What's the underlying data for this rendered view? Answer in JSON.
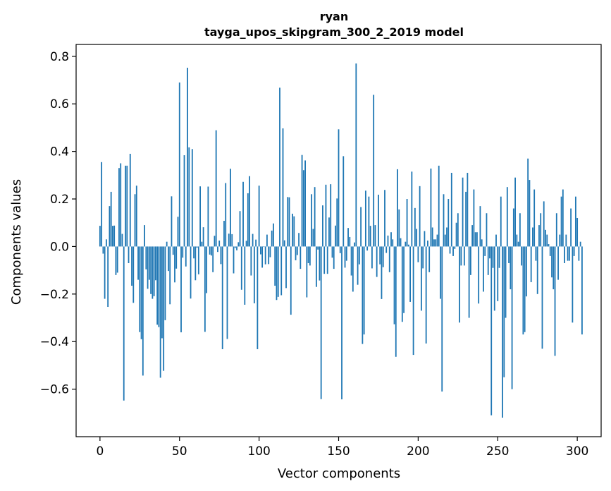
{
  "chart_data": {
    "type": "bar",
    "title": "ryan",
    "subtitle": "tayga_upos_skipgram_300_2_2019 model",
    "xlabel": "Vector components",
    "ylabel": "Components values",
    "xlim": [
      -15,
      315
    ],
    "ylim": [
      -0.8,
      0.85
    ],
    "xticks": [
      0,
      50,
      100,
      150,
      200,
      250,
      300
    ],
    "yticks": [
      -0.6,
      -0.4,
      -0.2,
      0.0,
      0.2,
      0.4,
      0.6,
      0.8
    ],
    "xtick_labels": [
      "0",
      "50",
      "100",
      "150",
      "200",
      "250",
      "300"
    ],
    "ytick_labels": [
      "−0.6",
      "−0.4",
      "−0.2",
      "0.0",
      "0.2",
      "0.4",
      "0.6",
      "0.8"
    ],
    "grid": false,
    "bar_color": "#1f77b4",
    "values": [
      0.087,
      0.355,
      -0.03,
      -0.22,
      0.03,
      -0.254,
      0.17,
      0.23,
      0.087,
      0.088,
      -0.12,
      -0.11,
      0.33,
      0.35,
      0.053,
      -0.648,
      0.34,
      0.34,
      -0.07,
      0.39,
      -0.165,
      -0.237,
      0.22,
      0.256,
      -0.14,
      -0.36,
      -0.39,
      -0.543,
      0.09,
      -0.096,
      -0.178,
      -0.14,
      -0.2,
      -0.22,
      -0.209,
      -0.142,
      -0.329,
      -0.339,
      -0.552,
      -0.386,
      -0.523,
      -0.31,
      0.02,
      -0.103,
      -0.243,
      0.211,
      -0.035,
      -0.151,
      -0.093,
      0.125,
      0.69,
      -0.361,
      -0.047,
      0.384,
      -0.084,
      0.752,
      0.417,
      -0.219,
      0.41,
      -0.05,
      -0.142,
      -0.005,
      -0.117,
      0.253,
      0.02,
      0.081,
      -0.359,
      -0.196,
      0.252,
      -0.034,
      -0.038,
      -0.108,
      0.045,
      0.489,
      -0.023,
      0.025,
      -0.074,
      -0.432,
      0.108,
      0.267,
      -0.389,
      0.054,
      0.327,
      0.052,
      -0.113,
      -0.006,
      -0.016,
      0.018,
      0.149,
      -0.182,
      0.272,
      -0.245,
      0.024,
      0.224,
      0.296,
      -0.122,
      0.053,
      -0.239,
      0.029,
      -0.432,
      0.256,
      -0.033,
      -0.089,
      -0.002,
      -0.075,
      0.05,
      -0.074,
      -0.045,
      0.067,
      0.097,
      -0.165,
      -0.225,
      -0.212,
      0.668,
      -0.205,
      0.497,
      0.026,
      -0.175,
      0.208,
      0.207,
      -0.287,
      0.138,
      0.127,
      -0.058,
      -0.036,
      0.057,
      -0.094,
      0.385,
      0.321,
      0.362,
      -0.214,
      -0.07,
      -0.08,
      0.22,
      0.074,
      0.25,
      -0.17,
      -0.013,
      -0.143,
      -0.642,
      0.173,
      -0.115,
      0.26,
      -0.115,
      0.122,
      0.262,
      -0.047,
      -0.094,
      0.088,
      0.202,
      0.493,
      -0.028,
      -0.643,
      0.38,
      -0.089,
      -0.06,
      0.078,
      0.04,
      -0.122,
      -0.19,
      0.017,
      0.77,
      -0.161,
      -0.075,
      0.166,
      -0.41,
      -0.37,
      0.235,
      -0.017,
      0.21,
      0.087,
      -0.092,
      0.638,
      0.09,
      -0.128,
      0.218,
      -0.075,
      -0.221,
      -0.087,
      0.238,
      -0.027,
      0.046,
      -0.108,
      0.06,
      0.03,
      -0.327,
      -0.464,
      0.325,
      0.156,
      0.035,
      -0.317,
      -0.28,
      0.02,
      0.2,
      0.008,
      -0.233,
      0.315,
      -0.456,
      0.162,
      0.074,
      -0.066,
      0.254,
      -0.27,
      -0.092,
      0.065,
      -0.408,
      0.025,
      -0.108,
      0.328,
      0.08,
      0.03,
      0.03,
      0.05,
      0.34,
      -0.22,
      -0.61,
      0.22,
      0.05,
      0.08,
      0.2,
      -0.03,
      0.31,
      -0.04,
      -0.01,
      0.1,
      0.14,
      -0.32,
      -0.08,
      0.29,
      -0.08,
      0.23,
      0.31,
      -0.3,
      -0.12,
      0.09,
      0.24,
      0.06,
      0.06,
      -0.24,
      0.17,
      0.03,
      -0.19,
      -0.04,
      0.14,
      -0.12,
      -0.05,
      -0.71,
      -0.09,
      -0.27,
      0.05,
      -0.23,
      -0.09,
      0.21,
      -0.72,
      -0.55,
      -0.3,
      0.25,
      -0.07,
      -0.18,
      -0.6,
      0.16,
      0.29,
      0.05,
      0.02,
      0.14,
      -0.08,
      -0.37,
      -0.36,
      -0.21,
      0.37,
      0.28,
      -0.15,
      0.08,
      0.24,
      -0.06,
      -0.2,
      0.09,
      0.14,
      -0.43,
      0.19,
      0.07,
      0.05,
      0.01,
      -0.04,
      -0.13,
      -0.18,
      -0.46,
      0.14,
      -0.14,
      0.05,
      0.21,
      0.24,
      -0.07,
      0.05,
      -0.06,
      -0.06,
      0.16,
      -0.32,
      -0.04,
      0.21,
      0.12,
      -0.06,
      0.02,
      -0.37
    ]
  }
}
